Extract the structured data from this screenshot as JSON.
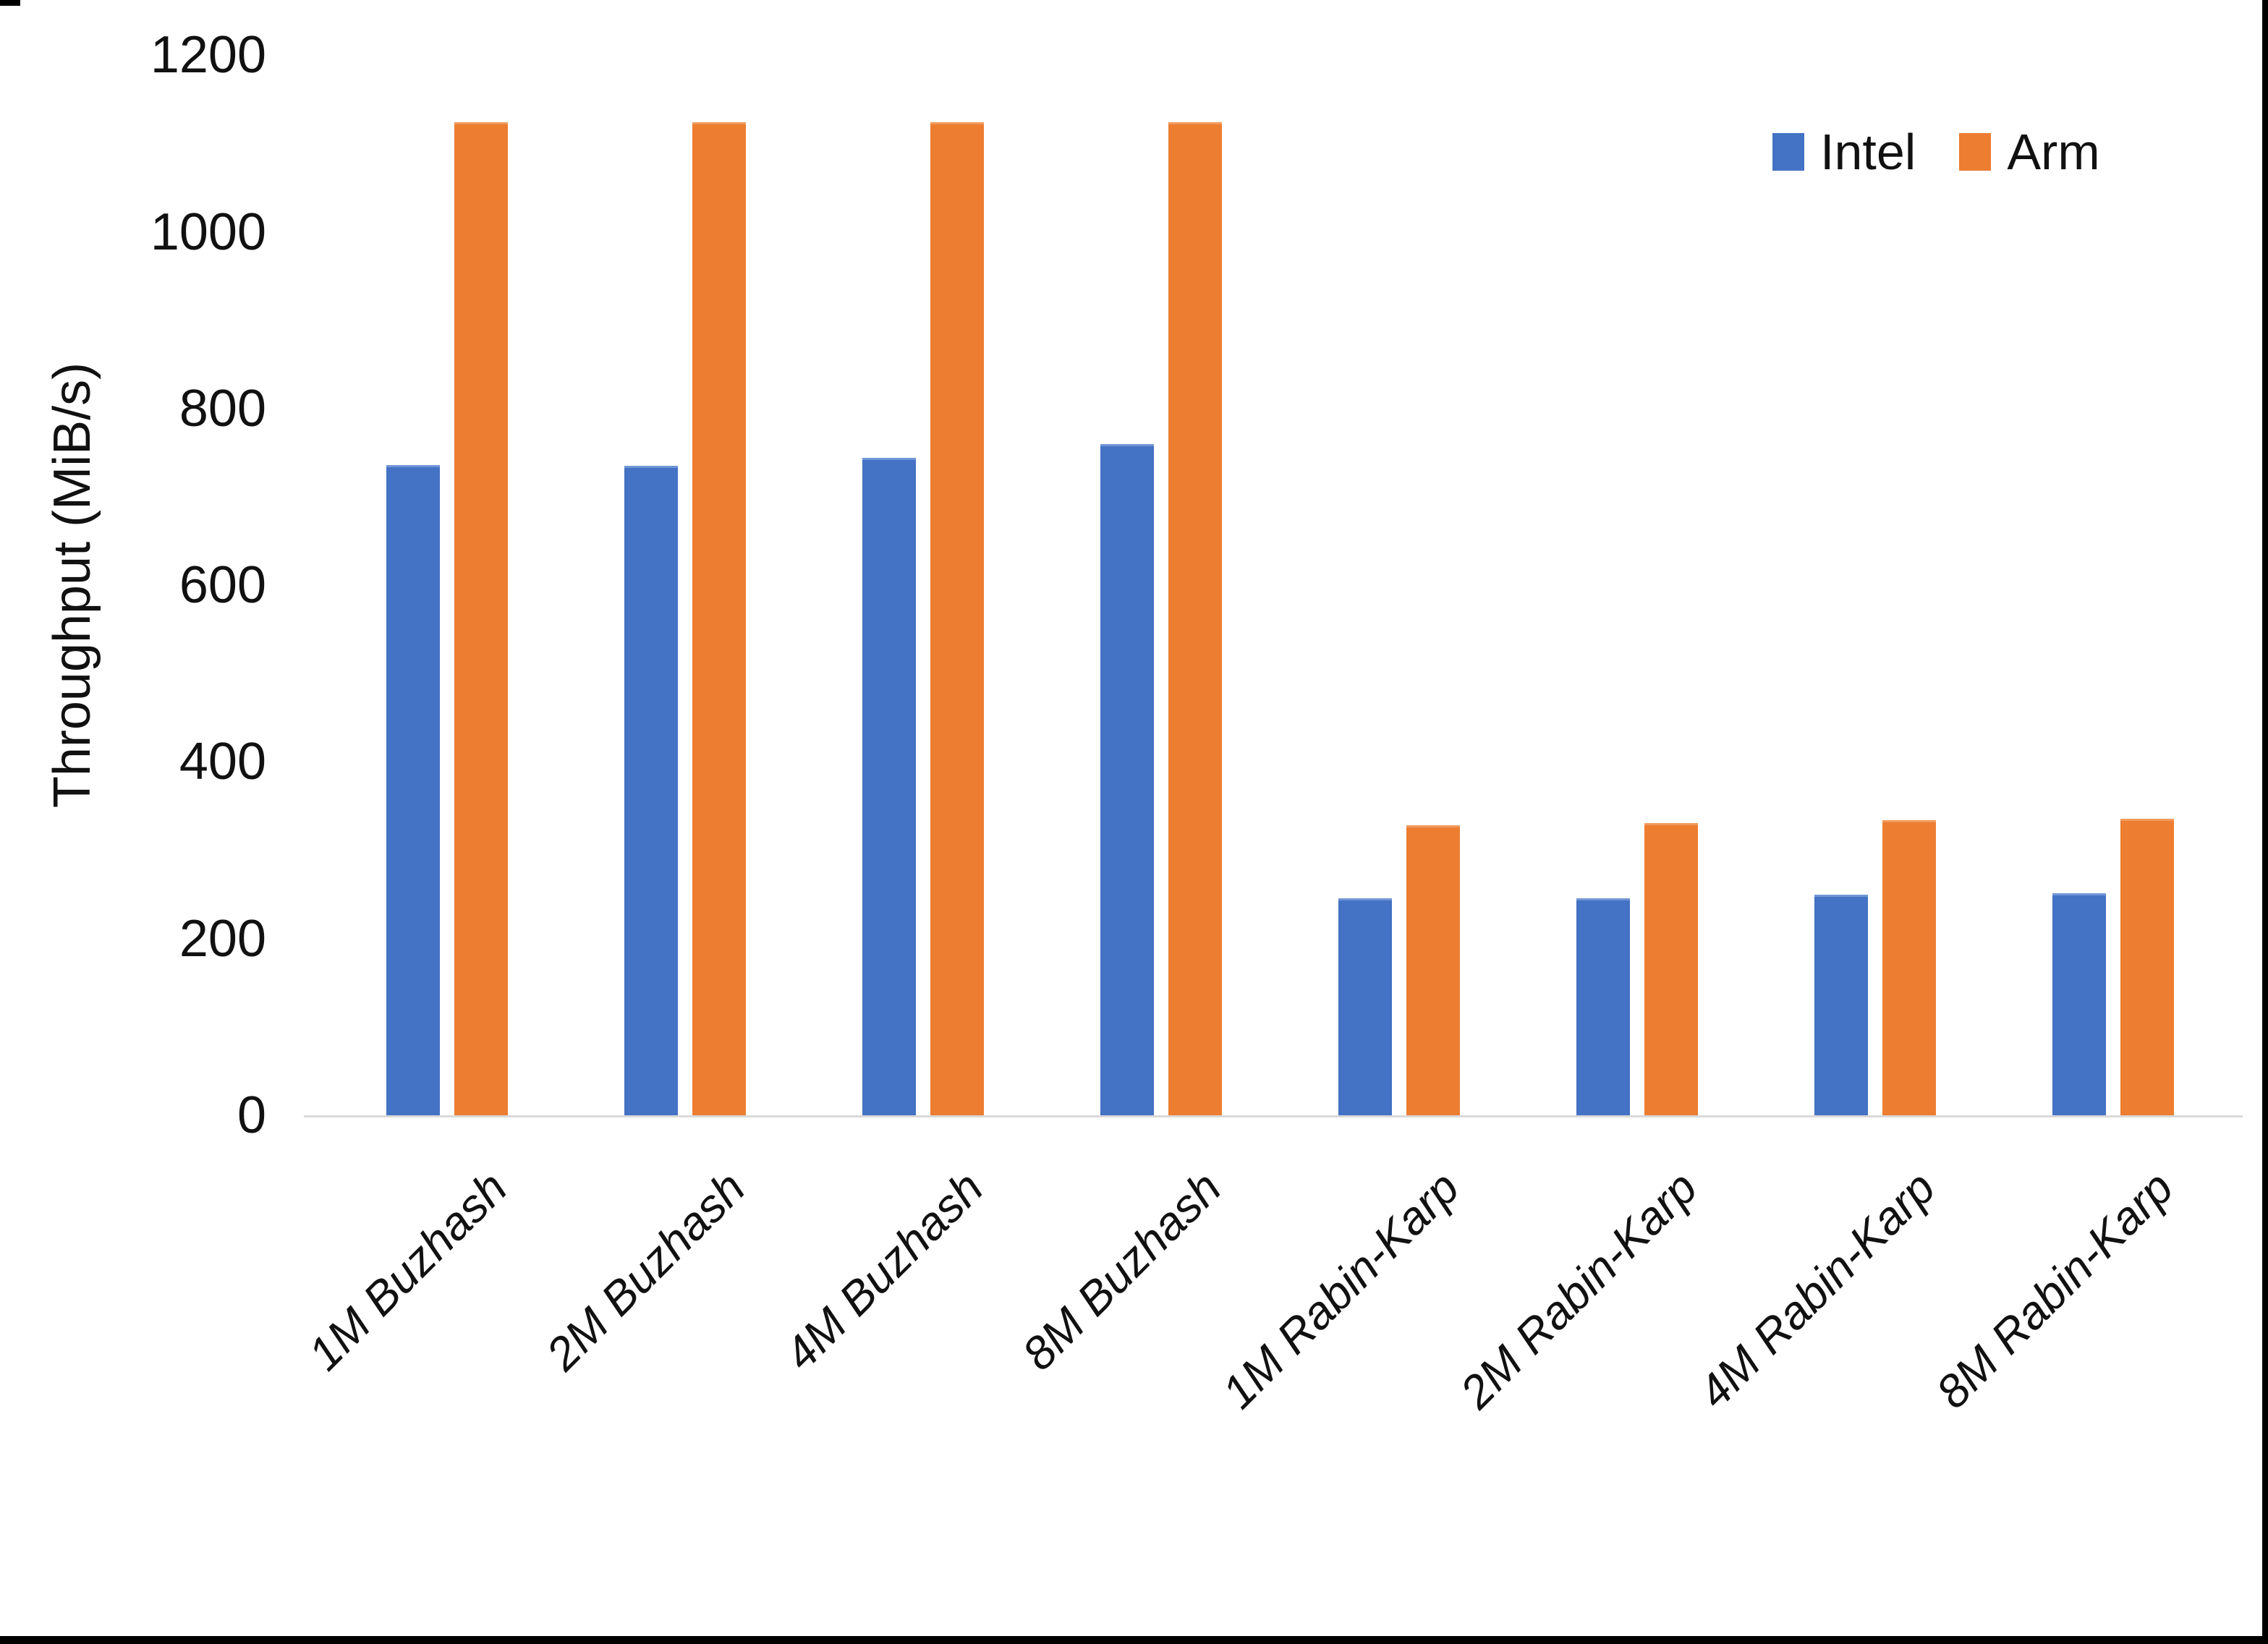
{
  "chart_data": {
    "type": "bar",
    "title": "",
    "xlabel": "",
    "ylabel": "Throughput (MiB/s)",
    "categories": [
      "1M Buzhash",
      "2M Buzhash",
      "4M Buzhash",
      "8M Buzhash",
      "1M Rabin-Karp",
      "2M Rabin-Karp",
      "4M Rabin-Karp",
      "8M Rabin-Karp"
    ],
    "series": [
      {
        "name": "Intel",
        "color": "#4472C4",
        "values": [
          736,
          735,
          744,
          760,
          246,
          246,
          250,
          251
        ]
      },
      {
        "name": "Arm",
        "color": "#ED7D31",
        "values": [
          1124,
          1124,
          1124,
          1124,
          328,
          331,
          334,
          336
        ]
      }
    ],
    "ylim": [
      0,
      1200
    ],
    "yticks": [
      0,
      200,
      400,
      600,
      800,
      1000,
      1200
    ],
    "grid": false,
    "legend_position": "top-right"
  }
}
